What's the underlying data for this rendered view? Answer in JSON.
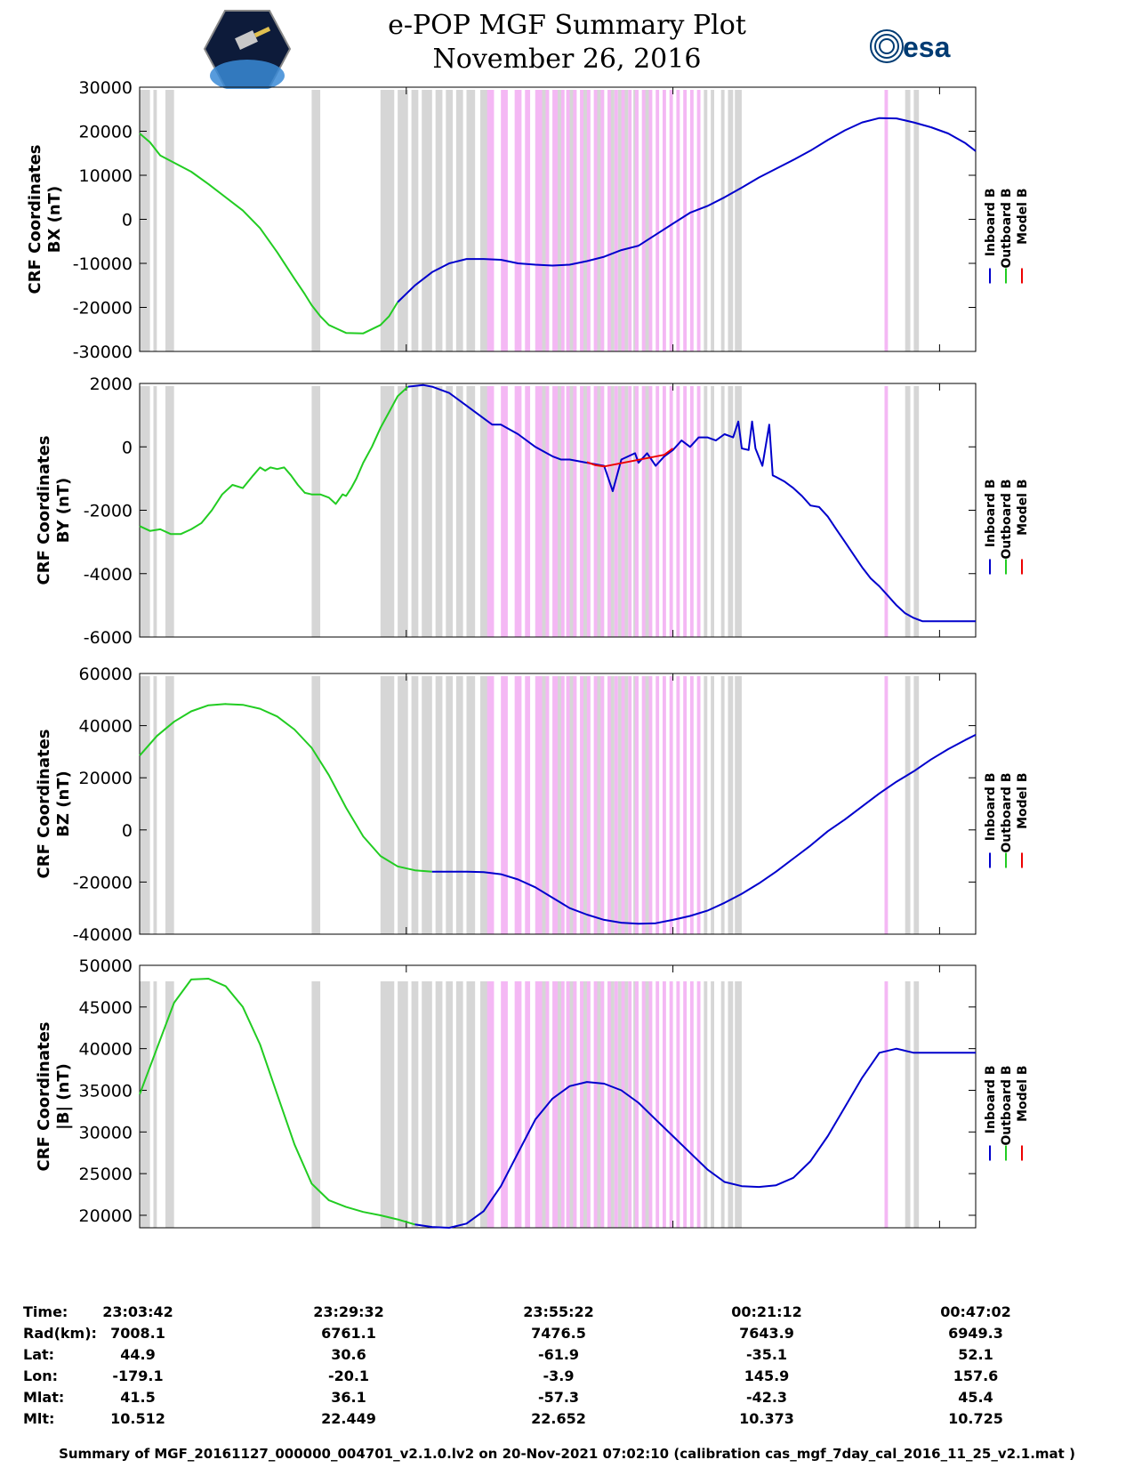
{
  "title": "e-POP MGF Summary Plot",
  "subtitle": "November 26, 2016",
  "logos": {
    "left": "cassiope-mission-logo",
    "right_text": "esa"
  },
  "colors": {
    "inboard": "#0000cc",
    "outboard": "#22cc22",
    "model": "#ee0000",
    "gray_band": "#d6d6d6",
    "pink_band": "#f4b8f4"
  },
  "chart_data": [
    {
      "type": "line",
      "ylabel": [
        "CRF Coordinates",
        "BX (nT)"
      ],
      "ylim": [
        -30000,
        30000
      ],
      "yticks": [
        30000,
        20000,
        10000,
        0,
        -10000,
        -20000,
        -30000
      ],
      "ytick_labels": [
        "30000",
        "20000",
        "10000",
        "0",
        "-10000",
        "-20000",
        "-30000"
      ],
      "legend": [
        "Inboard B",
        "Outboard B",
        "Model B"
      ],
      "series": [
        {
          "name": "Outboard B",
          "color": "outboard",
          "x": [
            0,
            60,
            120,
            300,
            400,
            600,
            700,
            800,
            900,
            960,
            1000,
            1050,
            1100,
            1200,
            1300,
            1400,
            1450,
            1500
          ],
          "values": [
            19500,
            17500,
            14500,
            10800,
            8000,
            2000,
            -2000,
            -7500,
            -13500,
            -17000,
            -19500,
            -22000,
            -24000,
            -25800,
            -25900,
            -24000,
            -22000,
            -18800
          ]
        },
        {
          "name": "Inboard B",
          "color": "inboard",
          "x": [
            1500,
            1600,
            1700,
            1800,
            1900,
            2000,
            2100,
            2200,
            2300,
            2400,
            2500,
            2600,
            2700,
            2800,
            2900,
            3000,
            3100,
            3200,
            3300,
            3400,
            3500,
            3600,
            3700,
            3800,
            3900,
            4000,
            4100,
            4200,
            4300,
            4400,
            4500,
            4600
          ],
          "values": [
            -18800,
            -15000,
            -12000,
            -10000,
            -9000,
            -9000,
            -9200,
            -10000,
            -10300,
            -10500,
            -10300,
            -9500,
            -8500,
            -7000,
            -6000,
            -3500,
            -1000,
            1500,
            3000,
            5000,
            7200,
            9500,
            11500,
            13500,
            15600,
            18000,
            20200,
            22000,
            23000,
            22900,
            22000,
            20900
          ]
        },
        {
          "name": "Inboard B",
          "color": "inboard",
          "x": [
            4600,
            4700,
            4800,
            4860
          ],
          "values": [
            20900,
            19500,
            17300,
            15500
          ]
        }
      ]
    },
    {
      "type": "line",
      "ylabel": [
        "CRF Coordinates",
        "BY (nT)"
      ],
      "ylim": [
        -6000,
        2000
      ],
      "yticks": [
        2000,
        0,
        -2000,
        -4000,
        -6000
      ],
      "ytick_labels": [
        "2000",
        "0",
        "-2000",
        "-4000",
        "-6000"
      ],
      "legend": [
        "Inboard B",
        "Outboard B",
        "Model B"
      ],
      "series": [
        {
          "name": "Outboard B",
          "color": "outboard",
          "x": [
            0,
            60,
            120,
            180,
            240,
            300,
            360,
            420,
            480,
            540,
            600,
            660,
            700,
            730,
            760,
            800,
            840,
            880,
            920,
            960,
            1000,
            1050,
            1100,
            1140,
            1180,
            1200,
            1230,
            1260,
            1300,
            1350,
            1400,
            1450,
            1500,
            1560
          ],
          "values": [
            -2500,
            -2650,
            -2600,
            -2750,
            -2750,
            -2600,
            -2400,
            -2000,
            -1500,
            -1200,
            -1300,
            -900,
            -650,
            -750,
            -650,
            -700,
            -650,
            -900,
            -1200,
            -1450,
            -1500,
            -1500,
            -1600,
            -1800,
            -1500,
            -1550,
            -1300,
            -1000,
            -500,
            0,
            600,
            1100,
            1600,
            1900
          ]
        },
        {
          "name": "Inboard B",
          "color": "inboard",
          "x": [
            1560,
            1650,
            1700,
            1800,
            1900,
            2000,
            2050,
            2100,
            2200,
            2300,
            2400,
            2450,
            2500,
            2600,
            2700,
            2750,
            2800,
            2880,
            2900,
            2950,
            3000,
            3050,
            3100,
            3150,
            3200,
            3250,
            3300,
            3350,
            3400,
            3450,
            3480,
            3500,
            3540,
            3560,
            3580,
            3620,
            3660,
            3680,
            3700,
            3750,
            3800,
            3850,
            3900,
            3950,
            4000,
            4050,
            4100,
            4150,
            4200,
            4250,
            4300,
            4350,
            4400,
            4450,
            4500,
            4550,
            4600,
            4650,
            4700,
            4750,
            4800,
            4860
          ],
          "values": [
            1900,
            1950,
            1900,
            1700,
            1300,
            900,
            700,
            700,
            400,
            0,
            -300,
            -400,
            -400,
            -500,
            -600,
            -1400,
            -400,
            -200,
            -500,
            -200,
            -600,
            -300,
            -100,
            200,
            0,
            300,
            300,
            200,
            400,
            300,
            800,
            -50,
            -100,
            800,
            -50,
            -600,
            700,
            -900,
            -950,
            -1100,
            -1300,
            -1550,
            -1850,
            -1900,
            -2200,
            -2600,
            -3000,
            -3400,
            -3800,
            -4150,
            -4400,
            -4700,
            -5000,
            -5250,
            -5400,
            -5500,
            -5500,
            -5500,
            -5500,
            -5500,
            -5500,
            -5500
          ]
        },
        {
          "name": "Model B",
          "color": "model",
          "x": [
            2600,
            2650,
            2700,
            3050,
            3100
          ],
          "values": [
            -480,
            -580,
            -620,
            -250,
            -50
          ]
        }
      ]
    },
    {
      "type": "line",
      "ylabel": [
        "CRF Coordinates",
        "BZ (nT)"
      ],
      "ylim": [
        -40000,
        60000
      ],
      "yticks": [
        60000,
        40000,
        20000,
        0,
        -20000,
        -40000
      ],
      "ytick_labels": [
        "60000",
        "40000",
        "20000",
        "0",
        "-20000",
        "-40000"
      ],
      "legend": [
        "Inboard B",
        "Outboard B",
        "Model B"
      ],
      "series": [
        {
          "name": "Outboard B",
          "color": "outboard",
          "x": [
            0,
            100,
            200,
            300,
            400,
            500,
            600,
            700,
            800,
            900,
            1000,
            1100,
            1200,
            1300,
            1400,
            1500,
            1600,
            1700
          ],
          "values": [
            28500,
            36000,
            41500,
            45500,
            47800,
            48300,
            48000,
            46500,
            43500,
            38500,
            31500,
            21000,
            8500,
            -2500,
            -10000,
            -14000,
            -15500,
            -16000
          ]
        },
        {
          "name": "Inboard B",
          "color": "inboard",
          "x": [
            1700,
            1800,
            1900,
            2000,
            2100,
            2200,
            2300,
            2400,
            2500,
            2600,
            2700,
            2800,
            2900,
            3000,
            3100,
            3200,
            3300,
            3400,
            3500,
            3600,
            3700,
            3800,
            3900,
            4000,
            4100,
            4200,
            4300,
            4400,
            4500,
            4600,
            4700,
            4800,
            4860
          ],
          "values": [
            -16000,
            -16000,
            -16000,
            -16200,
            -17000,
            -19000,
            -22000,
            -26000,
            -30000,
            -32500,
            -34500,
            -35600,
            -36000,
            -35800,
            -34500,
            -33000,
            -31000,
            -28000,
            -24500,
            -20500,
            -16000,
            -11000,
            -6000,
            -500,
            4000,
            9000,
            14000,
            18500,
            22500,
            27000,
            31000,
            34500,
            36500
          ]
        }
      ]
    },
    {
      "type": "line",
      "ylabel": [
        "CRF Coordinates",
        "|B| (nT)"
      ],
      "ylim": [
        18500,
        50000
      ],
      "yticks": [
        50000,
        45000,
        40000,
        35000,
        30000,
        25000,
        20000
      ],
      "ytick_labels": [
        "50000",
        "45000",
        "40000",
        "35000",
        "30000",
        "25000",
        "20000"
      ],
      "legend": [
        "Inboard B",
        "Outboard B",
        "Model B"
      ],
      "series": [
        {
          "name": "Outboard B",
          "color": "outboard",
          "x": [
            0,
            100,
            200,
            300,
            400,
            500,
            600,
            700,
            800,
            900,
            1000,
            1100,
            1200,
            1300,
            1400,
            1500,
            1600
          ],
          "values": [
            34500,
            40000,
            45500,
            48300,
            48400,
            47500,
            45000,
            40500,
            34500,
            28500,
            23800,
            21800,
            21000,
            20400,
            20000,
            19500,
            18900
          ]
        },
        {
          "name": "Inboard B",
          "color": "inboard",
          "x": [
            1600,
            1700,
            1800,
            1900,
            2000,
            2100,
            2200,
            2300,
            2400,
            2500,
            2600,
            2700,
            2800,
            2900,
            3000,
            3100,
            3200,
            3300,
            3400,
            3500,
            3600,
            3700,
            3800,
            3900,
            4000,
            4100,
            4200,
            4300,
            4400,
            4500,
            4600,
            4700,
            4800,
            4860
          ],
          "values": [
            18900,
            18600,
            18500,
            19000,
            20500,
            23500,
            27500,
            31500,
            34000,
            35500,
            36000,
            35800,
            35000,
            33500,
            31500,
            29500,
            27500,
            25500,
            24000,
            23500,
            23400,
            23600,
            24500,
            26500,
            29500,
            33000,
            36500,
            39500,
            40000,
            39500,
            39500,
            39500,
            39500,
            39500
          ]
        }
      ]
    }
  ],
  "time_axis": {
    "xlim": [
      0,
      4860
    ],
    "ticks": [
      0,
      1550,
      3100,
      4650,
      6200
    ]
  },
  "bands": {
    "gray": [
      [
        0,
        60
      ],
      [
        80,
        100
      ],
      [
        150,
        200
      ],
      [
        1000,
        1050
      ],
      [
        1400,
        1480
      ],
      [
        1500,
        1560
      ],
      [
        1580,
        1620
      ],
      [
        1640,
        1700
      ],
      [
        1720,
        1760
      ],
      [
        1780,
        1820
      ],
      [
        1840,
        1880
      ],
      [
        1900,
        1950
      ],
      [
        1980,
        2030
      ],
      [
        2300,
        2380
      ],
      [
        2400,
        2460
      ],
      [
        2480,
        2540
      ],
      [
        2560,
        2620
      ],
      [
        2650,
        2700
      ],
      [
        2720,
        2760
      ],
      [
        2780,
        2840
      ],
      [
        2870,
        2900
      ],
      [
        2920,
        2960
      ],
      [
        3280,
        3300
      ],
      [
        3320,
        3340
      ],
      [
        3380,
        3400
      ],
      [
        3420,
        3450
      ],
      [
        3460,
        3500
      ],
      [
        4450,
        4480
      ],
      [
        4500,
        4530
      ]
    ],
    "pink": [
      [
        2020,
        2060
      ],
      [
        2100,
        2140
      ],
      [
        2180,
        2220
      ],
      [
        2240,
        2270
      ],
      [
        2300,
        2340
      ],
      [
        2360,
        2380
      ],
      [
        2400,
        2430
      ],
      [
        2450,
        2470
      ],
      [
        2480,
        2500
      ],
      [
        2520,
        2540
      ],
      [
        2560,
        2580
      ],
      [
        2600,
        2620
      ],
      [
        2640,
        2660
      ],
      [
        2680,
        2700
      ],
      [
        2720,
        2740
      ],
      [
        2760,
        2780
      ],
      [
        2800,
        2820
      ],
      [
        2840,
        2860
      ],
      [
        2880,
        2900
      ],
      [
        2920,
        2940
      ],
      [
        2960,
        2980
      ],
      [
        3000,
        3020
      ],
      [
        3040,
        3060
      ],
      [
        3080,
        3100
      ],
      [
        3120,
        3140
      ],
      [
        3160,
        3180
      ],
      [
        3200,
        3220
      ],
      [
        3240,
        3260
      ],
      [
        4330,
        4350
      ]
    ]
  },
  "info": {
    "labels": [
      "Time:",
      "Rad(km):",
      "Lat:",
      "Lon:",
      "Mlat:",
      "Mlt:"
    ],
    "columns": [
      [
        "23:03:42",
        "7008.1",
        "44.9",
        "-179.1",
        "41.5",
        "10.512"
      ],
      [
        "23:29:32",
        "6761.1",
        "30.6",
        "-20.1",
        "36.1",
        "22.449"
      ],
      [
        "23:55:22",
        "7476.5",
        "-61.9",
        "-3.9",
        "-57.3",
        "22.652"
      ],
      [
        "00:21:12",
        "7643.9",
        "-35.1",
        "145.9",
        "-42.3",
        "10.373"
      ],
      [
        "00:47:02",
        "6949.3",
        "52.1",
        "157.6",
        "45.4",
        "10.725"
      ]
    ]
  },
  "footer": "Summary of MGF_20161127_000000_004701_v2.1.0.lv2 on 20-Nov-2021 07:02:10 (calibration cas_mgf_7day_cal_2016_11_25_v2.1.mat )"
}
